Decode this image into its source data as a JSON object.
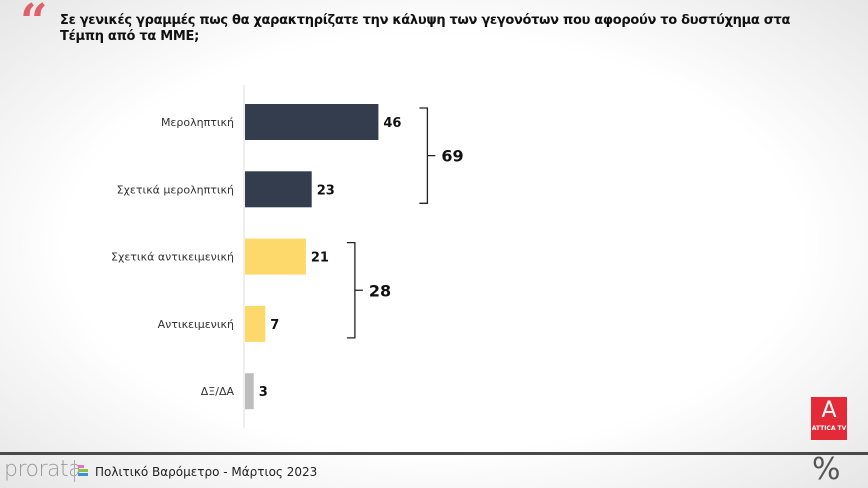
{
  "title": "Σε γενικές γραμμές πως θα χαρακτηρίζατε την κάλυψη των γεγονότων που αφορούν το δυστύχημα στα Τέμπη από τα ΜΜΕ;",
  "footer": {
    "brand": "prorata",
    "text": "Πολιτικό Βαρόμετρο - Μάρτιος 2023",
    "unit_symbol": "%",
    "channel_logo": "ATTICA TV"
  },
  "chart_data": {
    "type": "bar",
    "orientation": "horizontal",
    "title": "Σε γενικές γραμμές πως θα χαρακτηρίζατε την κάλυψη των γεγονότων που αφορούν το δυστύχημα στα Τέμπη από τα ΜΜΕ;",
    "categories": [
      "Μεροληπτική",
      "Σχετικά μεροληπτική",
      "Σχετικά αντικειμενική",
      "Αντικειμενική",
      "ΔΞ/ΔΑ"
    ],
    "values": [
      46,
      23,
      21,
      7,
      3
    ],
    "colors": [
      "#343d4d",
      "#343d4d",
      "#fdd86a",
      "#fdd86a",
      "#bdbdbd"
    ],
    "groups": [
      {
        "label": "69",
        "from": 0,
        "to": 1
      },
      {
        "label": "28",
        "from": 2,
        "to": 3
      }
    ],
    "unit": "%"
  }
}
